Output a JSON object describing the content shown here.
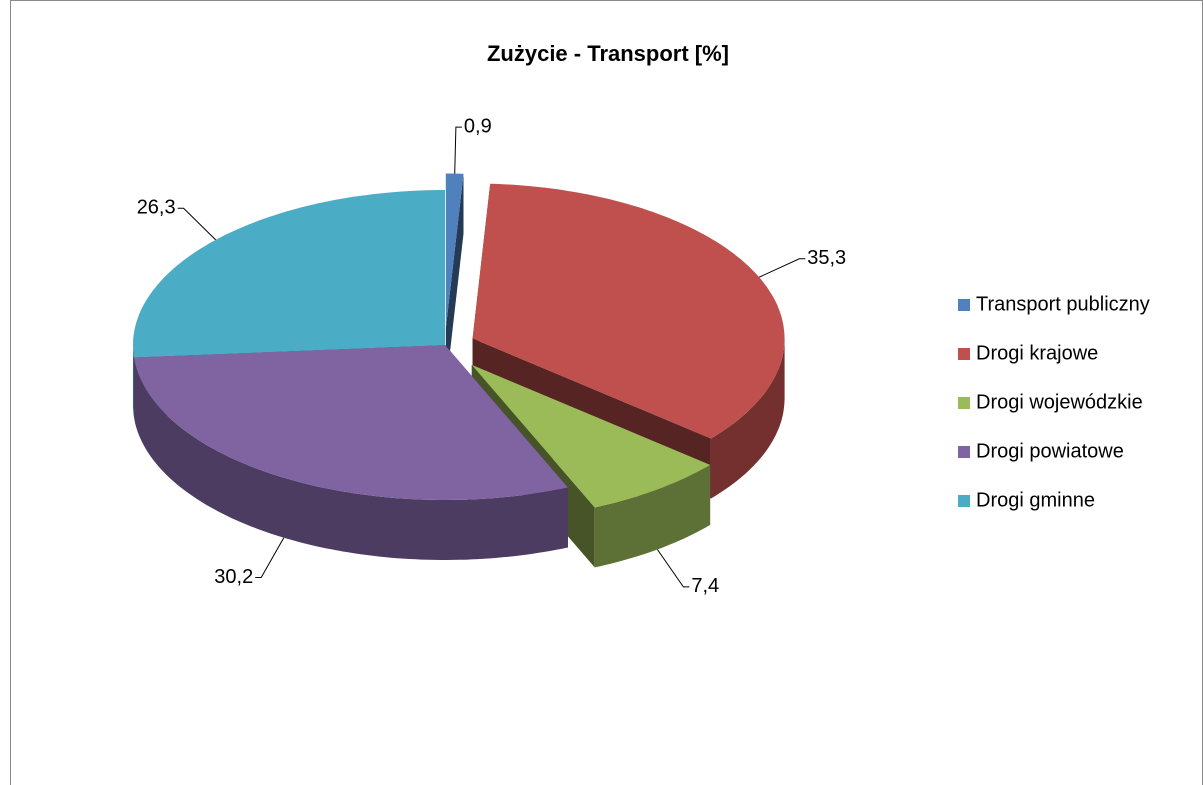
{
  "chart_data": {
    "type": "pie",
    "title": "Zużycie - Transport [%]",
    "categories": [
      "Transport publiczny",
      "Drogi krajowe",
      "Drogi wojewódzkie",
      "Drogi powiatowe",
      "Drogi gminne"
    ],
    "values": [
      0.9,
      35.3,
      7.4,
      30.2,
      26.3
    ],
    "value_labels": [
      "0,9",
      "35,3",
      "7,4",
      "30,2",
      "26,3"
    ],
    "colors": [
      "#4f81bd",
      "#c0504d",
      "#9bbb59",
      "#8064a2",
      "#4bacc6"
    ],
    "legend": "right"
  }
}
